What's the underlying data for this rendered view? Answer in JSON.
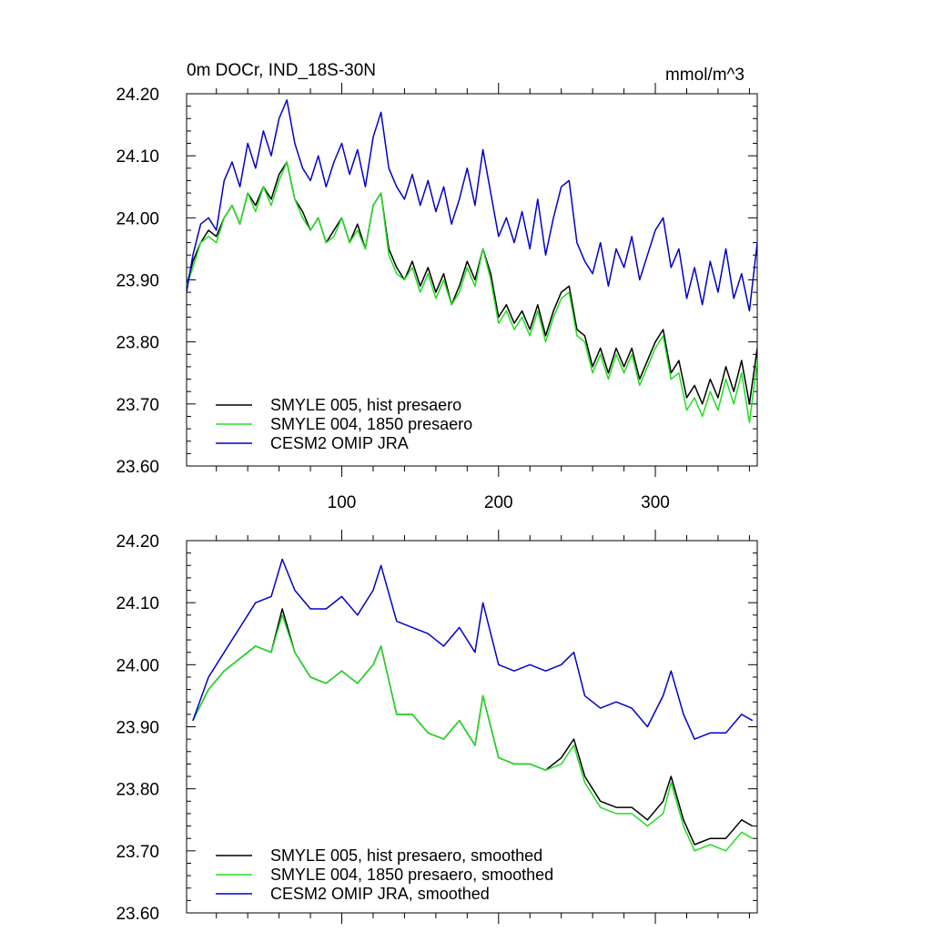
{
  "figure": {
    "title_left": "0m DOCr, IND_18S-30N",
    "title_right": "mmol/m^3"
  },
  "chart_data": [
    {
      "type": "line",
      "panel": "raw",
      "xlim": [
        1,
        365
      ],
      "ylim": [
        23.6,
        24.2
      ],
      "y_ticks": [
        23.6,
        23.7,
        23.8,
        23.9,
        24.0,
        24.1,
        24.2
      ],
      "y_tick_labels": [
        "23.60",
        "23.70",
        "23.80",
        "23.90",
        "24.00",
        "24.10",
        "24.20"
      ],
      "x_ticks": [
        100,
        200,
        300
      ],
      "x_tick_labels": [
        "100",
        "200",
        "300"
      ],
      "legend_position": "bottom-left",
      "series": [
        {
          "name": "SMYLE 005, hist presaero",
          "color": "#000000",
          "x": [
            1,
            5,
            10,
            15,
            20,
            25,
            30,
            35,
            40,
            45,
            50,
            55,
            60,
            65,
            70,
            75,
            80,
            85,
            90,
            95,
            100,
            105,
            110,
            115,
            120,
            125,
            130,
            135,
            140,
            145,
            150,
            155,
            160,
            165,
            170,
            175,
            180,
            185,
            190,
            195,
            200,
            205,
            210,
            215,
            220,
            225,
            230,
            235,
            240,
            245,
            250,
            255,
            260,
            265,
            270,
            275,
            280,
            285,
            290,
            295,
            300,
            305,
            310,
            315,
            320,
            325,
            330,
            335,
            340,
            345,
            350,
            355,
            360,
            365
          ],
          "values": [
            23.89,
            23.93,
            23.96,
            23.98,
            23.97,
            24.0,
            24.02,
            23.99,
            24.04,
            24.02,
            24.05,
            24.03,
            24.07,
            24.09,
            24.03,
            24.01,
            23.98,
            24.0,
            23.96,
            23.98,
            24.0,
            23.96,
            23.99,
            23.95,
            24.02,
            24.04,
            23.95,
            23.92,
            23.9,
            23.93,
            23.89,
            23.92,
            23.88,
            23.91,
            23.86,
            23.89,
            23.93,
            23.9,
            23.95,
            23.91,
            23.84,
            23.86,
            23.83,
            23.85,
            23.82,
            23.86,
            23.81,
            23.85,
            23.88,
            23.89,
            23.82,
            23.81,
            23.76,
            23.79,
            23.75,
            23.79,
            23.76,
            23.79,
            23.74,
            23.77,
            23.8,
            23.82,
            23.75,
            23.77,
            23.71,
            23.73,
            23.7,
            23.74,
            23.71,
            23.76,
            23.72,
            23.77,
            23.7,
            23.79
          ]
        },
        {
          "name": "SMYLE 004, 1850 presaero",
          "color": "#22dd22",
          "x": [
            1,
            5,
            10,
            15,
            20,
            25,
            30,
            35,
            40,
            45,
            50,
            55,
            60,
            65,
            70,
            75,
            80,
            85,
            90,
            95,
            100,
            105,
            110,
            115,
            120,
            125,
            130,
            135,
            140,
            145,
            150,
            155,
            160,
            165,
            170,
            175,
            180,
            185,
            190,
            195,
            200,
            205,
            210,
            215,
            220,
            225,
            230,
            235,
            240,
            245,
            250,
            255,
            260,
            265,
            270,
            275,
            280,
            285,
            290,
            295,
            300,
            305,
            310,
            315,
            320,
            325,
            330,
            335,
            340,
            345,
            350,
            355,
            360,
            365
          ],
          "values": [
            23.89,
            23.92,
            23.96,
            23.97,
            23.96,
            24.0,
            24.02,
            23.99,
            24.04,
            24.01,
            24.05,
            24.02,
            24.06,
            24.09,
            24.03,
            24.0,
            23.98,
            24.0,
            23.96,
            23.97,
            24.0,
            23.96,
            23.98,
            23.95,
            24.02,
            24.04,
            23.94,
            23.91,
            23.9,
            23.92,
            23.88,
            23.91,
            23.87,
            23.9,
            23.86,
            23.88,
            23.92,
            23.89,
            23.95,
            23.9,
            23.83,
            23.85,
            23.82,
            23.84,
            23.81,
            23.85,
            23.8,
            23.84,
            23.87,
            23.88,
            23.81,
            23.8,
            23.75,
            23.78,
            23.74,
            23.78,
            23.75,
            23.78,
            23.73,
            23.76,
            23.79,
            23.81,
            23.74,
            23.75,
            23.69,
            23.71,
            23.68,
            23.72,
            23.69,
            23.74,
            23.7,
            23.75,
            23.67,
            23.77
          ]
        },
        {
          "name": "CESM2 OMIP JRA",
          "color": "#0000cc",
          "x": [
            1,
            5,
            10,
            15,
            20,
            25,
            30,
            35,
            40,
            45,
            50,
            55,
            60,
            65,
            70,
            75,
            80,
            85,
            90,
            95,
            100,
            105,
            110,
            115,
            120,
            125,
            130,
            135,
            140,
            145,
            150,
            155,
            160,
            165,
            170,
            175,
            180,
            185,
            190,
            195,
            200,
            205,
            210,
            215,
            220,
            225,
            230,
            235,
            240,
            245,
            250,
            255,
            260,
            265,
            270,
            275,
            280,
            285,
            290,
            295,
            300,
            305,
            310,
            315,
            320,
            325,
            330,
            335,
            340,
            345,
            350,
            355,
            360,
            365
          ],
          "values": [
            23.88,
            23.94,
            23.99,
            24.0,
            23.98,
            24.06,
            24.09,
            24.05,
            24.12,
            24.08,
            24.14,
            24.1,
            24.16,
            24.19,
            24.12,
            24.08,
            24.06,
            24.1,
            24.05,
            24.09,
            24.12,
            24.07,
            24.11,
            24.05,
            24.13,
            24.17,
            24.08,
            24.05,
            24.03,
            24.07,
            24.02,
            24.06,
            24.01,
            24.05,
            23.99,
            24.03,
            24.08,
            24.02,
            24.11,
            24.04,
            23.97,
            24.0,
            23.96,
            24.01,
            23.95,
            24.03,
            23.94,
            24.0,
            24.05,
            24.06,
            23.96,
            23.93,
            23.91,
            23.96,
            23.89,
            23.95,
            23.92,
            23.97,
            23.9,
            23.94,
            23.98,
            24.0,
            23.92,
            23.95,
            23.87,
            23.92,
            23.86,
            23.93,
            23.88,
            23.95,
            23.87,
            23.91,
            23.85,
            23.96
          ]
        }
      ]
    },
    {
      "type": "line",
      "panel": "smoothed",
      "xlim": [
        1,
        365
      ],
      "ylim": [
        23.6,
        24.2
      ],
      "y_ticks": [
        23.6,
        23.7,
        23.8,
        23.9,
        24.0,
        24.1,
        24.2
      ],
      "y_tick_labels": [
        "23.60",
        "23.70",
        "23.80",
        "23.90",
        "24.00",
        "24.10",
        "24.20"
      ],
      "x_ticks": [
        100,
        200,
        300
      ],
      "x_tick_labels": [],
      "legend_position": "bottom-left",
      "series": [
        {
          "name": "SMYLE 005, hist presaero, smoothed",
          "color": "#000000",
          "x": [
            5,
            15,
            25,
            35,
            45,
            55,
            62,
            70,
            80,
            90,
            100,
            110,
            120,
            125,
            135,
            145,
            155,
            165,
            175,
            185,
            190,
            200,
            210,
            220,
            230,
            240,
            248,
            255,
            265,
            275,
            285,
            295,
            305,
            310,
            318,
            325,
            335,
            345,
            355,
            362
          ],
          "values": [
            23.91,
            23.96,
            23.99,
            24.01,
            24.03,
            24.02,
            24.09,
            24.02,
            23.98,
            23.97,
            23.99,
            23.97,
            24.0,
            24.03,
            23.92,
            23.92,
            23.89,
            23.88,
            23.91,
            23.87,
            23.95,
            23.85,
            23.84,
            23.84,
            23.83,
            23.85,
            23.88,
            23.82,
            23.78,
            23.77,
            23.77,
            23.75,
            23.78,
            23.82,
            23.75,
            23.71,
            23.72,
            23.72,
            23.75,
            23.74
          ]
        },
        {
          "name": "SMYLE 004, 1850 presaero, smoothed",
          "color": "#22dd22",
          "x": [
            5,
            15,
            25,
            35,
            45,
            55,
            62,
            70,
            80,
            90,
            100,
            110,
            120,
            125,
            135,
            145,
            155,
            165,
            175,
            185,
            190,
            200,
            210,
            220,
            230,
            240,
            248,
            255,
            265,
            275,
            285,
            295,
            305,
            310,
            318,
            325,
            335,
            345,
            355,
            362
          ],
          "values": [
            23.91,
            23.96,
            23.99,
            24.01,
            24.03,
            24.02,
            24.08,
            24.02,
            23.98,
            23.97,
            23.99,
            23.97,
            24.0,
            24.03,
            23.92,
            23.92,
            23.89,
            23.88,
            23.91,
            23.87,
            23.95,
            23.85,
            23.84,
            23.84,
            23.83,
            23.84,
            23.87,
            23.81,
            23.77,
            23.76,
            23.76,
            23.74,
            23.76,
            23.81,
            23.74,
            23.7,
            23.71,
            23.7,
            23.73,
            23.72
          ]
        },
        {
          "name": "CESM2 OMIP JRA, smoothed",
          "color": "#0000cc",
          "x": [
            5,
            15,
            25,
            35,
            45,
            55,
            62,
            70,
            80,
            90,
            100,
            110,
            120,
            125,
            135,
            145,
            155,
            165,
            175,
            185,
            190,
            200,
            210,
            220,
            230,
            240,
            248,
            255,
            265,
            275,
            285,
            295,
            305,
            310,
            318,
            325,
            335,
            345,
            355,
            362
          ],
          "values": [
            23.91,
            23.98,
            24.02,
            24.06,
            24.1,
            24.11,
            24.17,
            24.12,
            24.09,
            24.09,
            24.11,
            24.08,
            24.12,
            24.16,
            24.07,
            24.06,
            24.05,
            24.03,
            24.06,
            24.02,
            24.1,
            24.0,
            23.99,
            24.0,
            23.99,
            24.0,
            24.02,
            23.95,
            23.93,
            23.94,
            23.93,
            23.9,
            23.95,
            23.99,
            23.92,
            23.88,
            23.89,
            23.89,
            23.92,
            23.91
          ]
        }
      ]
    }
  ]
}
